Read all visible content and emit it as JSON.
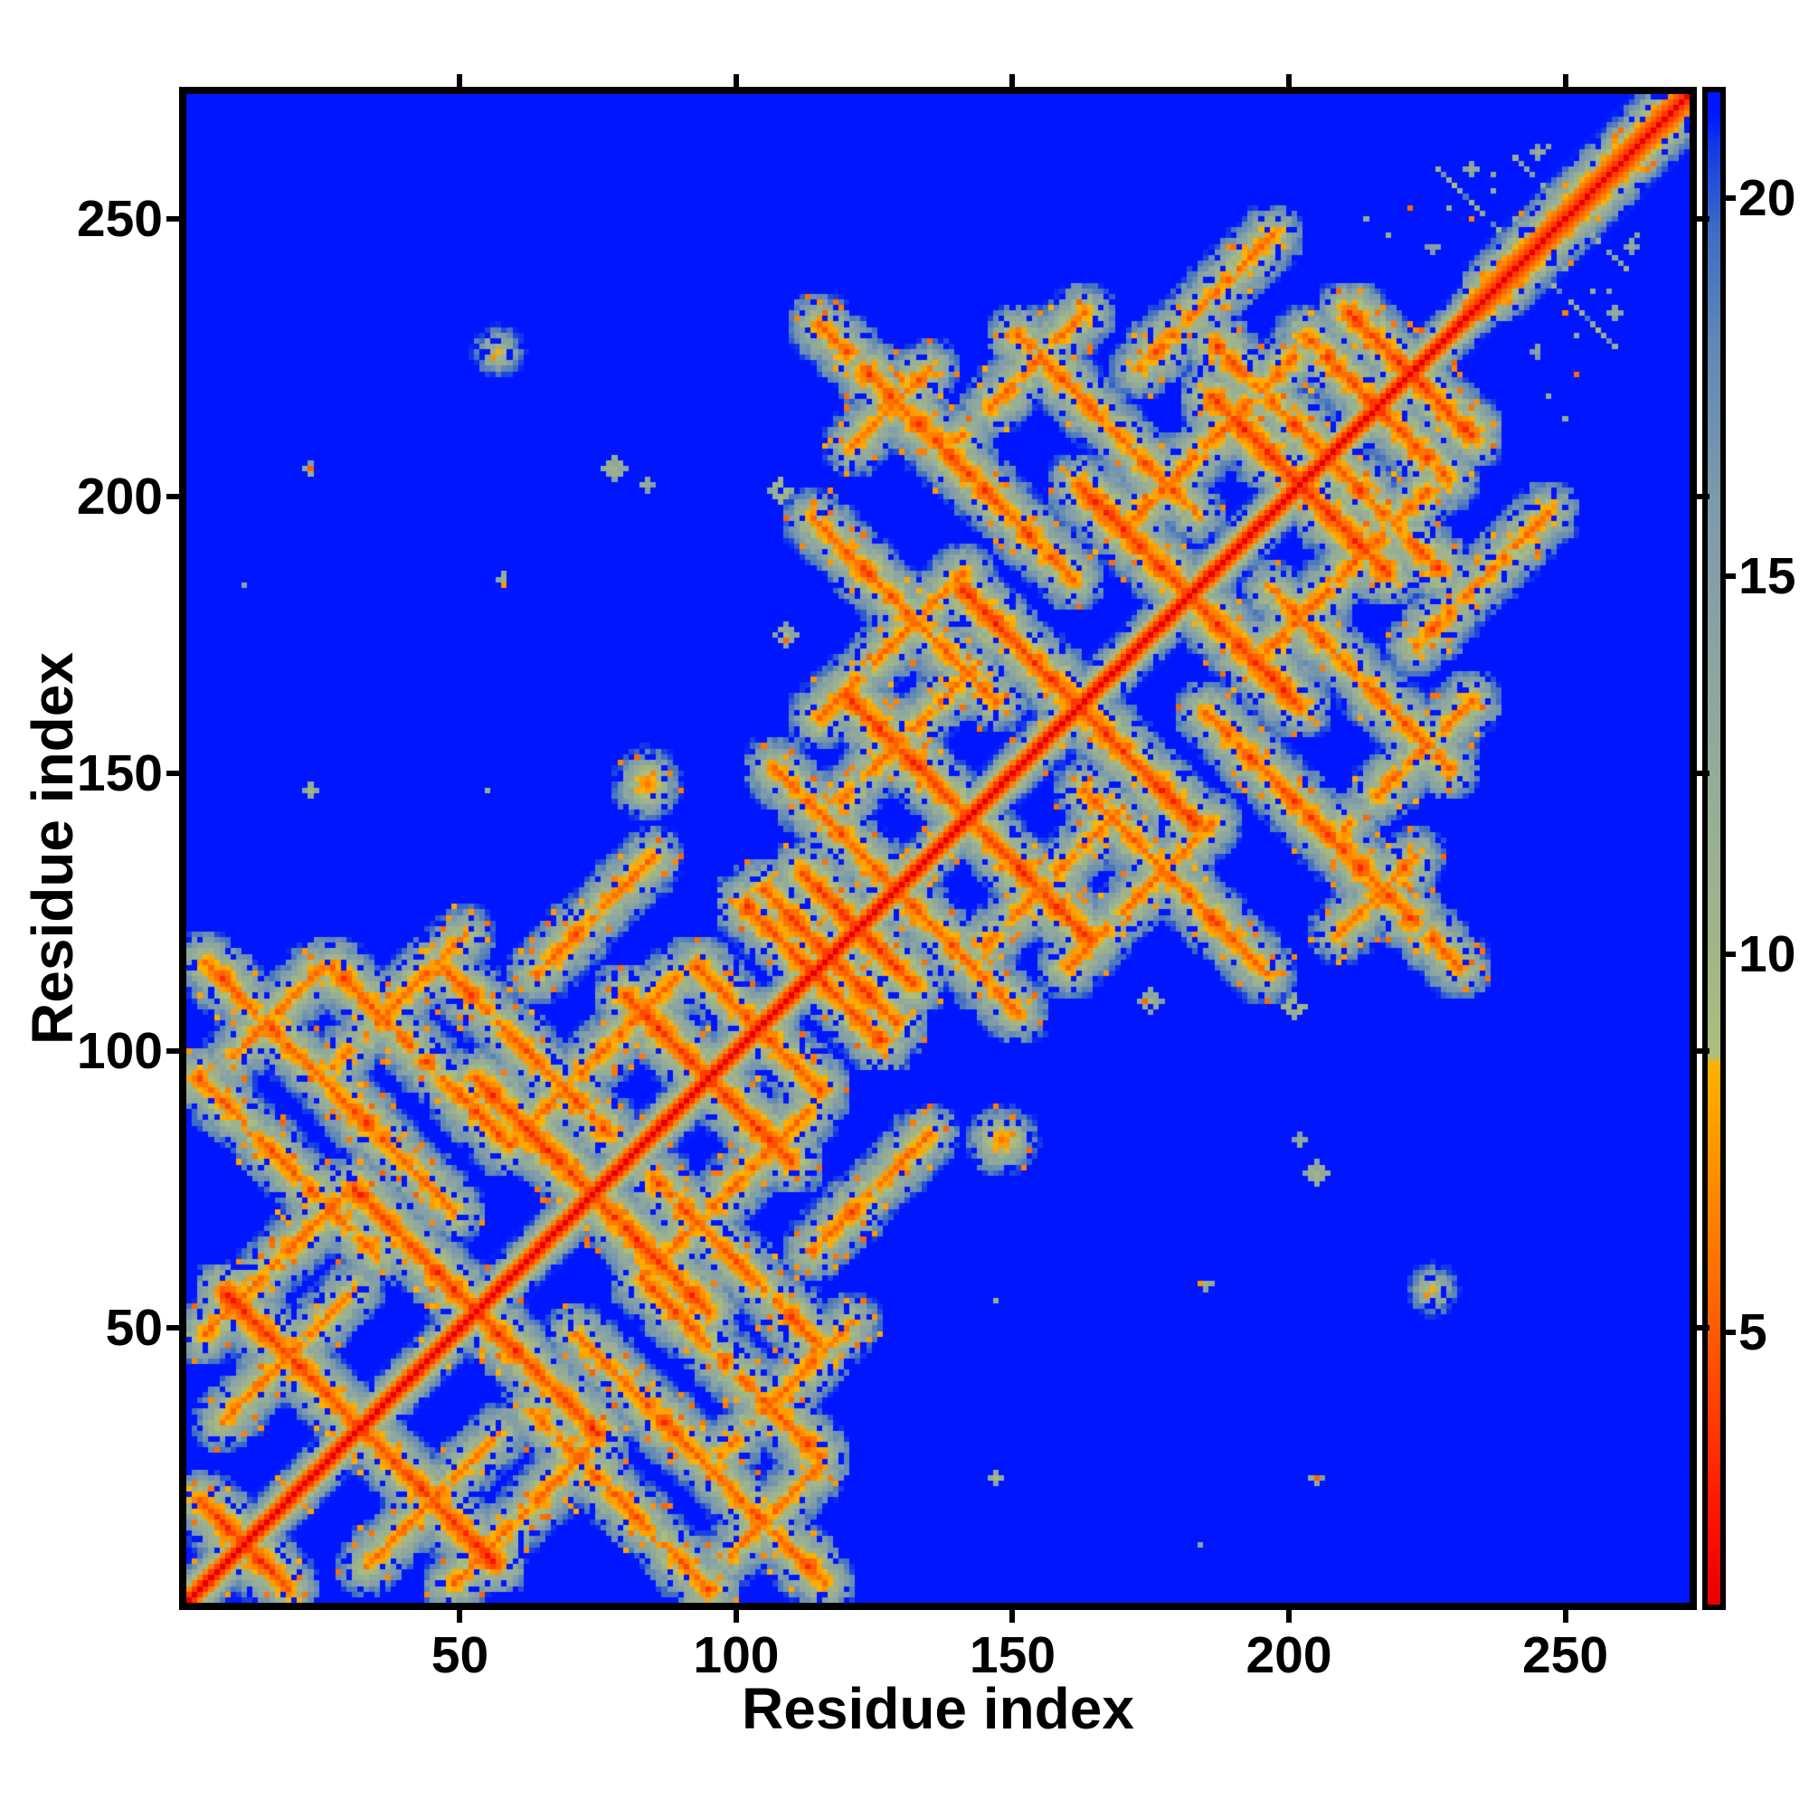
{
  "figure": {
    "background": "#ffffff",
    "kind": "protein residue-residue distance map heatmap with colorbar"
  },
  "chart_data": {
    "type": "heatmap",
    "title": "",
    "xlabel": "Residue index",
    "ylabel": "Residue index",
    "x_ticks": [
      50,
      100,
      150,
      200,
      250
    ],
    "y_ticks": [
      50,
      100,
      150,
      200,
      250
    ],
    "x_range": [
      0.5,
      272.5
    ],
    "y_range": [
      0.5,
      272.5
    ],
    "n_residues": 272,
    "grid": false,
    "legend": "colorbar-right",
    "colors": {
      "background_far": "#0016ff",
      "diagonal_near": "#ee0000",
      "contact_core": "#ff8c00",
      "halo_mid": "#94ab96",
      "text": "#000000"
    },
    "colorbar": {
      "ticks": [
        5,
        10,
        15,
        20
      ],
      "vmin": 1.4,
      "vmax": 21.4,
      "stops": [
        [
          1.4,
          "#e80000"
        ],
        [
          2.4,
          "#fa1000"
        ],
        [
          3.5,
          "#ff3000"
        ],
        [
          5.0,
          "#ff5c00"
        ],
        [
          6.5,
          "#ff8000"
        ],
        [
          7.6,
          "#ff9a00"
        ],
        [
          8.55,
          "#ffb200"
        ],
        [
          8.65,
          "#acbf7c"
        ],
        [
          10.0,
          "#a2b587"
        ],
        [
          12.0,
          "#96ad96"
        ],
        [
          14.0,
          "#8aa4a2"
        ],
        [
          16.0,
          "#7c9aac"
        ],
        [
          18.0,
          "#6289b6"
        ],
        [
          19.6,
          "#3e6cc4"
        ],
        [
          20.7,
          "#1538e8"
        ],
        [
          21.1,
          "#0018ff"
        ],
        [
          21.4,
          "#0016ff"
        ]
      ]
    },
    "matrix_model": {
      "description": "Symmetric residue-residue distance matrix: red diagonal, two beta-rich domain blocks (res ~1-116 and ~113-230) with crossing antiparallel hairpin contact lines, helical tail ~232-272 with wider diagonal band, isolated inter-domain contact spots.",
      "n": 272,
      "vmin": 1.4,
      "vmax": 21.4,
      "seed": 7,
      "helix_tail_start": 231,
      "backbone_sheet_profile": [
        0,
        3.8,
        6.6,
        9.6,
        13.0,
        16.2,
        19.2,
        21.0
      ],
      "backbone_helix_profile": [
        0,
        3.8,
        5.2,
        6.8,
        9.0,
        11.0,
        13.0,
        15.2,
        17.4,
        19.6,
        21.0
      ],
      "antidiagonals": [
        {
          "s": 20,
          "i0": 2,
          "i1": 18,
          "d": 4.6
        },
        {
          "s": 62,
          "i0": 7,
          "i1": 55,
          "d": 4.4
        },
        {
          "s": 104,
          "i0": 30,
          "i1": 74,
          "d": 4.5
        },
        {
          "s": 146,
          "i0": 52,
          "i1": 94,
          "d": 4.4
        },
        {
          "s": 188,
          "i0": 79,
          "i1": 109,
          "d": 4.6
        },
        {
          "s": 226,
          "i0": 101,
          "i1": 125,
          "d": 4.8
        },
        {
          "s": 118,
          "i0": 3,
          "i1": 49,
          "d": 5.2
        },
        {
          "s": 96,
          "i0": 2,
          "i1": 34,
          "d": 5.5
        },
        {
          "s": 140,
          "i0": 26,
          "i1": 58,
          "d": 5.0
        },
        {
          "s": 160,
          "i0": 46,
          "i1": 76,
          "d": 5.3
        },
        {
          "s": 206,
          "i0": 92,
          "i1": 112,
          "d": 5.4
        },
        {
          "s": 232,
          "i0": 104,
          "i1": 128,
          "d": 5.0
        },
        {
          "s": 256,
          "i0": 105,
          "i1": 127,
          "d": 5.0
        },
        {
          "s": 242,
          "i0": 111,
          "i1": 131,
          "d": 4.7
        },
        {
          "s": 282,
          "i0": 119,
          "i1": 163,
          "d": 4.5
        },
        {
          "s": 322,
          "i0": 140,
          "i1": 182,
          "d": 4.5
        },
        {
          "s": 362,
          "i0": 161,
          "i1": 201,
          "d": 4.6
        },
        {
          "s": 402,
          "i0": 185,
          "i1": 217,
          "d": 4.5
        },
        {
          "s": 442,
          "i0": 210,
          "i1": 232,
          "d": 4.8
        },
        {
          "s": 344,
          "i0": 114,
          "i1": 160,
          "d": 5.2
        },
        {
          "s": 308,
          "i0": 113,
          "i1": 146,
          "d": 5.5
        },
        {
          "s": 378,
          "i0": 150,
          "i1": 182,
          "d": 5.3
        },
        {
          "s": 412,
          "i0": 186,
          "i1": 212,
          "d": 5.2
        },
        {
          "s": 430,
          "i0": 202,
          "i1": 222,
          "d": 5.5
        },
        {
          "s": 484,
          "i0": 226,
          "i1": 241,
          "d": 11.5
        },
        {
          "s": 500,
          "i0": 240,
          "i1": 252,
          "d": 13.0
        }
      ],
      "parallels": [
        {
          "k": 45,
          "i0": 3,
          "i1": 28,
          "d": 5.6
        },
        {
          "k": 24,
          "i0": 58,
          "i1": 88,
          "d": 5.4
        },
        {
          "k": 50,
          "i0": 60,
          "i1": 84,
          "d": 5.6
        },
        {
          "k": 70,
          "i0": 26,
          "i1": 50,
          "d": 5.8
        },
        {
          "k": 90,
          "i0": 8,
          "i1": 24,
          "d": 6.0
        },
        {
          "k": 26,
          "i0": 6,
          "i1": 30,
          "d": 5.8
        },
        {
          "k": 45,
          "i0": 114,
          "i1": 140,
          "d": 5.6
        },
        {
          "k": 24,
          "i0": 170,
          "i1": 200,
          "d": 5.4
        },
        {
          "k": 50,
          "i0": 172,
          "i1": 196,
          "d": 5.6
        },
        {
          "k": 70,
          "i0": 138,
          "i1": 162,
          "d": 5.8
        },
        {
          "k": 88,
          "i0": 120,
          "i1": 136,
          "d": 6.0
        },
        {
          "k": 26,
          "i0": 118,
          "i1": 142,
          "d": 5.8
        }
      ],
      "spots": [
        {
          "i": 22,
          "j": 146,
          "d": 11.0,
          "r": 1
        },
        {
          "i": 54,
          "j": 146,
          "d": 12.5,
          "r": 0
        },
        {
          "i": 83,
          "j": 147,
          "d": 6.0,
          "r": 3
        },
        {
          "i": 22,
          "j": 204,
          "d": 11.5,
          "r": 1
        },
        {
          "i": 77,
          "j": 204,
          "d": 10.5,
          "r": 2
        },
        {
          "i": 56,
          "j": 225,
          "d": 9.0,
          "r": 3
        },
        {
          "i": 57,
          "j": 184,
          "d": 11.0,
          "r": 1
        },
        {
          "i": 10,
          "j": 183,
          "d": 12.0,
          "r": 0
        },
        {
          "i": 8,
          "j": 114,
          "d": 10.0,
          "r": 1
        },
        {
          "i": 108,
          "j": 174,
          "d": 10.5,
          "r": 2
        },
        {
          "i": 107,
          "j": 200,
          "d": 9.0,
          "r": 2
        },
        {
          "i": 83,
          "j": 201,
          "d": 12.0,
          "r": 1
        },
        {
          "i": 213,
          "j": 249,
          "d": 12.0,
          "r": 0
        },
        {
          "i": 217,
          "j": 246,
          "d": 13.0,
          "r": 0
        },
        {
          "i": 221,
          "j": 251,
          "d": 12.5,
          "r": 0
        },
        {
          "i": 225,
          "j": 244,
          "d": 13.5,
          "r": 1
        },
        {
          "i": 228,
          "j": 254,
          "d": 12.0,
          "r": 0
        },
        {
          "i": 232,
          "j": 249,
          "d": 13.0,
          "r": 0
        },
        {
          "i": 236,
          "j": 257,
          "d": 12.5,
          "r": 0
        },
        {
          "i": 241,
          "j": 252,
          "d": 13.5,
          "r": 0
        },
        {
          "i": 244,
          "j": 261,
          "d": 12.0,
          "r": 1
        },
        {
          "i": 249,
          "j": 240,
          "d": 13.0,
          "r": 0
        },
        {
          "i": 254,
          "j": 236,
          "d": 13.5,
          "r": 0
        },
        {
          "i": 258,
          "j": 232,
          "d": 12.5,
          "r": 1
        },
        {
          "i": 262,
          "j": 246,
          "d": 13.5,
          "r": 0
        },
        {
          "i": 251,
          "j": 228,
          "d": 14.0,
          "r": 0
        }
      ],
      "halo": {
        "radius": 5,
        "slope": 2.55,
        "jitter": 2.2
      },
      "speckle": {
        "hole_p": 0.1,
        "hot_p": 0.045,
        "grain": 3.0
      }
    }
  }
}
